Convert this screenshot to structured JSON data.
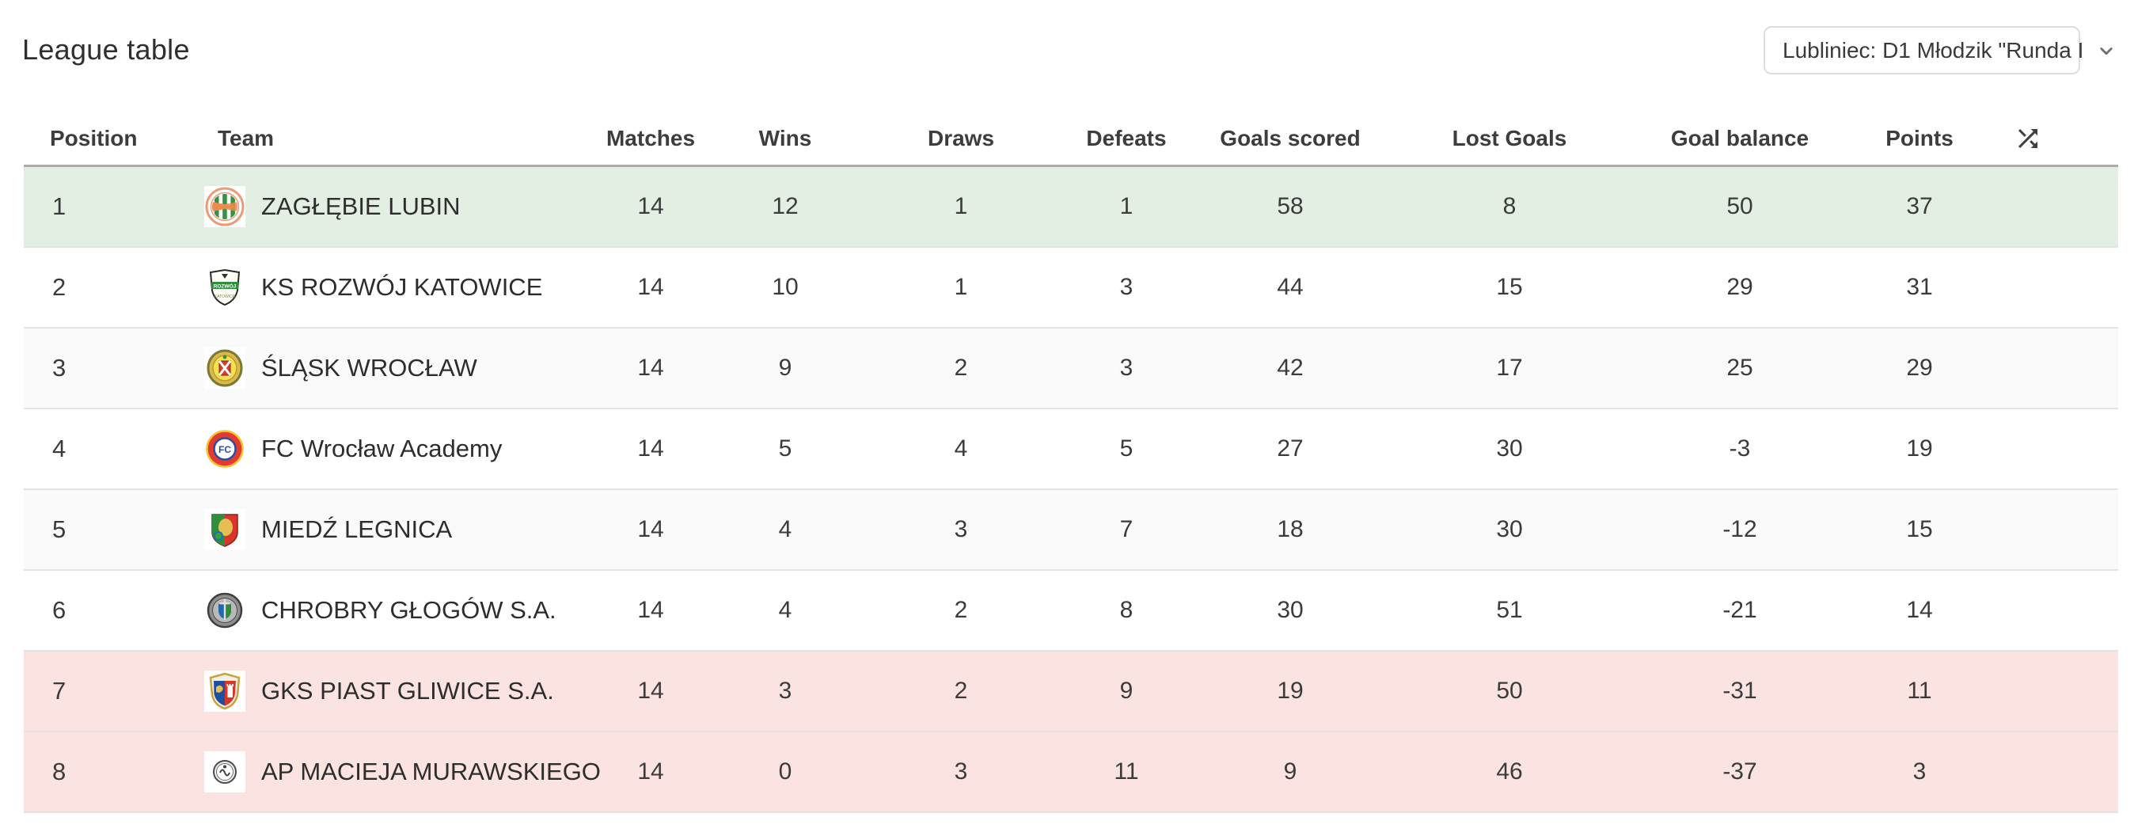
{
  "page": {
    "title": "League table"
  },
  "filter": {
    "value": "Lubliniec: D1 Młodzik \"Runda I"
  },
  "table": {
    "columns": [
      "Position",
      "Team",
      "Matches",
      "Wins",
      "Draws",
      "Defeats",
      "Goals scored",
      "Lost Goals",
      "Goal balance",
      "Points"
    ],
    "rows": [
      {
        "position": "1",
        "crest": "zaglebie-lubin",
        "team": "ZAGŁĘBIE LUBIN",
        "matches": "14",
        "wins": "12",
        "draws": "1",
        "defeats": "1",
        "goals_scored": "58",
        "lost_goals": "8",
        "goal_balance": "50",
        "points": "37",
        "highlight": "green"
      },
      {
        "position": "2",
        "crest": "rozwoj-katowice",
        "team": "KS ROZWÓJ KATOWICE",
        "matches": "14",
        "wins": "10",
        "draws": "1",
        "defeats": "3",
        "goals_scored": "44",
        "lost_goals": "15",
        "goal_balance": "29",
        "points": "31",
        "highlight": ""
      },
      {
        "position": "3",
        "crest": "slask-wroclaw",
        "team": "ŚLĄSK WROCŁAW",
        "matches": "14",
        "wins": "9",
        "draws": "2",
        "defeats": "3",
        "goals_scored": "42",
        "lost_goals": "17",
        "goal_balance": "25",
        "points": "29",
        "highlight": ""
      },
      {
        "position": "4",
        "crest": "fc-wroclaw-academy",
        "team": "FC Wrocław Academy",
        "matches": "14",
        "wins": "5",
        "draws": "4",
        "defeats": "5",
        "goals_scored": "27",
        "lost_goals": "30",
        "goal_balance": "-3",
        "points": "19",
        "highlight": ""
      },
      {
        "position": "5",
        "crest": "miedz-legnica",
        "team": "MIEDŹ LEGNICA",
        "matches": "14",
        "wins": "4",
        "draws": "3",
        "defeats": "7",
        "goals_scored": "18",
        "lost_goals": "30",
        "goal_balance": "-12",
        "points": "15",
        "highlight": ""
      },
      {
        "position": "6",
        "crest": "chrobry-glogow",
        "team": "CHROBRY GŁOGÓW S.A.",
        "matches": "14",
        "wins": "4",
        "draws": "2",
        "defeats": "8",
        "goals_scored": "30",
        "lost_goals": "51",
        "goal_balance": "-21",
        "points": "14",
        "highlight": ""
      },
      {
        "position": "7",
        "crest": "piast-gliwice",
        "team": "GKS PIAST GLIWICE S.A.",
        "matches": "14",
        "wins": "3",
        "draws": "2",
        "defeats": "9",
        "goals_scored": "19",
        "lost_goals": "50",
        "goal_balance": "-31",
        "points": "11",
        "highlight": "pink"
      },
      {
        "position": "8",
        "crest": "ap-macieja-murawskiego",
        "team": "AP MACIEJA MURAWSKIEGO",
        "matches": "14",
        "wins": "0",
        "draws": "3",
        "defeats": "11",
        "goals_scored": "9",
        "lost_goals": "46",
        "goal_balance": "-37",
        "points": "3",
        "highlight": "pink"
      }
    ]
  },
  "icons": {
    "header_sort": "shuffle-icon",
    "dropdown": "chevron-down-icon"
  },
  "colors": {
    "promotion_row_bg": "#e4efe3",
    "relegation_row_bg": "#fae3e1",
    "zebra_row_bg": "#fafafa",
    "header_border": "#adadad",
    "row_border": "#e4e2e2",
    "text": "#3b3b3b"
  }
}
